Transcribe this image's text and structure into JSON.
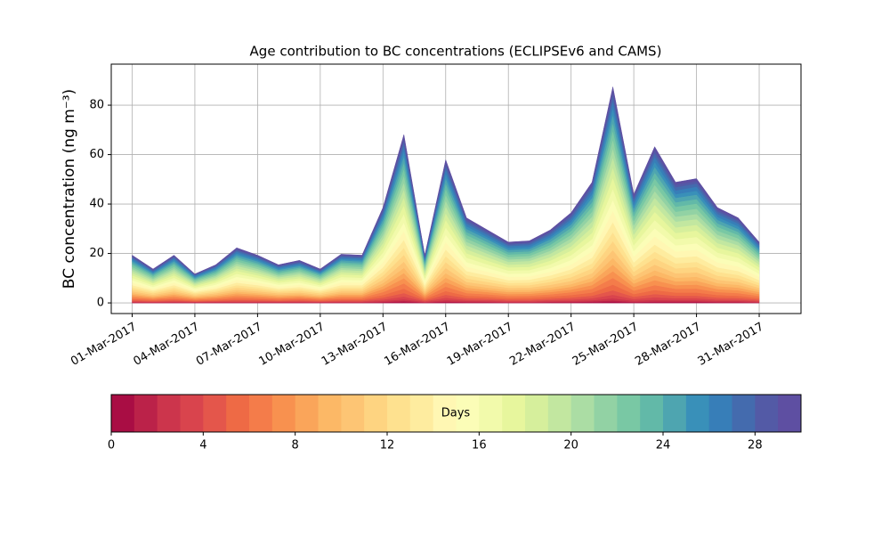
{
  "chart_data": {
    "type": "stacked-area",
    "title": "Age contribution to BC concentrations (ECLIPSEv6 and CAMS)",
    "ylabel": "BC concentration (ng m⁻³)",
    "x": [
      "2017-03-01",
      "2017-03-02",
      "2017-03-03",
      "2017-03-04",
      "2017-03-05",
      "2017-03-06",
      "2017-03-07",
      "2017-03-08",
      "2017-03-09",
      "2017-03-10",
      "2017-03-11",
      "2017-03-12",
      "2017-03-13",
      "2017-03-14",
      "2017-03-15",
      "2017-03-16",
      "2017-03-17",
      "2017-03-18",
      "2017-03-19",
      "2017-03-20",
      "2017-03-21",
      "2017-03-22",
      "2017-03-23",
      "2017-03-24",
      "2017-03-25",
      "2017-03-26",
      "2017-03-27",
      "2017-03-28",
      "2017-03-29",
      "2017-03-30",
      "2017-03-31"
    ],
    "xlim": [
      "2017-02-28",
      "2017-04-02"
    ],
    "xticks": [
      {
        "value": "2017-03-01",
        "label": "01-Mar-2017"
      },
      {
        "value": "2017-03-04",
        "label": "04-Mar-2017"
      },
      {
        "value": "2017-03-07",
        "label": "07-Mar-2017"
      },
      {
        "value": "2017-03-10",
        "label": "10-Mar-2017"
      },
      {
        "value": "2017-03-13",
        "label": "13-Mar-2017"
      },
      {
        "value": "2017-03-16",
        "label": "16-Mar-2017"
      },
      {
        "value": "2017-03-19",
        "label": "19-Mar-2017"
      },
      {
        "value": "2017-03-22",
        "label": "22-Mar-2017"
      },
      {
        "value": "2017-03-25",
        "label": "25-Mar-2017"
      },
      {
        "value": "2017-03-28",
        "label": "28-Mar-2017"
      },
      {
        "value": "2017-03-31",
        "label": "31-Mar-2017"
      }
    ],
    "ylim": [
      -4.3,
      96.6
    ],
    "yticks": [
      0,
      20,
      40,
      60,
      80
    ],
    "grid": true,
    "colorbar": {
      "label": "Days",
      "lim": [
        0,
        30
      ],
      "ticks": [
        0,
        4,
        8,
        12,
        16,
        20,
        24,
        28
      ]
    },
    "series": [
      {
        "color": "#a90d44",
        "values": [
          0.1,
          0.1,
          0.1,
          0.1,
          0.1,
          0.1,
          0.1,
          0.1,
          0.1,
          0.1,
          0.1,
          0.1,
          0.2,
          0.4,
          0.1,
          0.3,
          0.2,
          0.2,
          0.1,
          0.1,
          0.2,
          0.2,
          0.3,
          0.5,
          0.2,
          0.3,
          0.3,
          0.3,
          0.2,
          0.2,
          0.1
        ]
      },
      {
        "color": "#bb2249",
        "values": [
          0.1,
          0.1,
          0.1,
          0.1,
          0.1,
          0.1,
          0.1,
          0.1,
          0.1,
          0.1,
          0.1,
          0.1,
          0.2,
          0.4,
          0.1,
          0.3,
          0.2,
          0.2,
          0.1,
          0.1,
          0.2,
          0.2,
          0.3,
          0.5,
          0.2,
          0.3,
          0.3,
          0.3,
          0.2,
          0.2,
          0.1
        ]
      },
      {
        "color": "#cc354c",
        "values": [
          0.2,
          0.1,
          0.2,
          0.1,
          0.2,
          0.2,
          0.2,
          0.2,
          0.2,
          0.1,
          0.2,
          0.2,
          0.4,
          0.7,
          0.2,
          0.6,
          0.4,
          0.3,
          0.3,
          0.3,
          0.3,
          0.4,
          0.5,
          0.9,
          0.5,
          0.7,
          0.5,
          0.5,
          0.4,
          0.4,
          0.3
        ]
      },
      {
        "color": "#d9444d",
        "values": [
          0.3,
          0.2,
          0.3,
          0.2,
          0.2,
          0.3,
          0.3,
          0.2,
          0.3,
          0.2,
          0.3,
          0.3,
          0.6,
          1.1,
          0.3,
          0.9,
          0.5,
          0.5,
          0.4,
          0.4,
          0.5,
          0.6,
          0.8,
          1.4,
          0.7,
          1,
          0.8,
          0.8,
          0.6,
          0.5,
          0.4
        ]
      },
      {
        "color": "#e4564b",
        "values": [
          0.4,
          0.3,
          0.4,
          0.2,
          0.3,
          0.5,
          0.4,
          0.3,
          0.4,
          0.3,
          0.4,
          0.4,
          0.8,
          1.4,
          0.4,
          1.2,
          0.7,
          0.6,
          0.5,
          0.5,
          0.6,
          0.8,
          1,
          1.8,
          0.9,
          1.3,
          1,
          1,
          0.8,
          0.7,
          0.5
        ]
      },
      {
        "color": "#ee6a45",
        "values": [
          0.5,
          0.4,
          0.5,
          0.3,
          0.4,
          0.6,
          0.5,
          0.4,
          0.5,
          0.4,
          0.5,
          0.5,
          1,
          1.8,
          0.5,
          1.5,
          0.9,
          0.8,
          0.6,
          0.7,
          0.8,
          1,
          1.3,
          2.3,
          1.1,
          1.6,
          1.3,
          1.3,
          1,
          0.9,
          0.6
        ]
      },
      {
        "color": "#f47c4a",
        "values": [
          0.6,
          0.4,
          0.6,
          0.4,
          0.5,
          0.7,
          0.6,
          0.5,
          0.5,
          0.4,
          0.6,
          0.6,
          1.2,
          2.1,
          0.6,
          1.8,
          1.1,
          0.9,
          0.8,
          0.8,
          0.9,
          1.1,
          1.5,
          2.7,
          1.4,
          2,
          1.5,
          1.6,
          1.2,
          1.1,
          0.8
        ]
      },
      {
        "color": "#f8914f",
        "values": [
          0.6,
          0.4,
          0.6,
          0.4,
          0.5,
          0.7,
          0.6,
          0.5,
          0.5,
          0.4,
          0.6,
          0.6,
          1.2,
          2.1,
          0.6,
          1.8,
          1.1,
          0.9,
          0.8,
          0.8,
          0.9,
          1.1,
          1.5,
          2.7,
          1.4,
          2,
          1.5,
          1.6,
          1.2,
          1.1,
          0.8
        ]
      },
      {
        "color": "#faa55a",
        "values": [
          0.6,
          0.4,
          0.6,
          0.4,
          0.5,
          0.7,
          0.6,
          0.5,
          0.5,
          0.4,
          0.6,
          0.6,
          1.2,
          2.1,
          0.6,
          1.8,
          1.1,
          0.9,
          0.8,
          0.8,
          0.9,
          1.1,
          1.5,
          2.7,
          1.4,
          2,
          1.5,
          1.6,
          1.2,
          1.1,
          0.8
        ]
      },
      {
        "color": "#fcb866",
        "values": [
          0.6,
          0.4,
          0.6,
          0.4,
          0.5,
          0.7,
          0.6,
          0.5,
          0.5,
          0.4,
          0.6,
          0.6,
          1.2,
          2.1,
          0.6,
          1.8,
          1.1,
          0.9,
          0.8,
          0.8,
          0.9,
          1.1,
          1.5,
          2.7,
          1.4,
          2,
          1.5,
          1.6,
          1.2,
          1.1,
          0.8
        ]
      },
      {
        "color": "#fdc574",
        "values": [
          0.7,
          0.5,
          0.7,
          0.4,
          0.6,
          0.8,
          0.7,
          0.6,
          0.6,
          0.5,
          0.7,
          0.7,
          1.4,
          2.5,
          0.7,
          2.1,
          1.2,
          1.1,
          0.9,
          0.9,
          1.1,
          1.3,
          1.8,
          3.2,
          1.6,
          2.3,
          1.8,
          1.8,
          1.4,
          1.2,
          0.9
        ]
      },
      {
        "color": "#fed481",
        "values": [
          0.8,
          0.6,
          0.8,
          0.5,
          0.6,
          0.9,
          0.8,
          0.6,
          0.7,
          0.6,
          0.8,
          0.8,
          1.6,
          2.8,
          0.8,
          2.4,
          1.4,
          1.2,
          1,
          1,
          1.2,
          1.5,
          2,
          3.6,
          1.8,
          2.6,
          2,
          2.1,
          1.6,
          1.4,
          1
        ]
      },
      {
        "color": "#fee18f",
        "values": [
          0.8,
          0.6,
          0.8,
          0.5,
          0.6,
          0.9,
          0.8,
          0.6,
          0.7,
          0.6,
          0.8,
          0.8,
          1.6,
          2.8,
          0.8,
          2.4,
          1.4,
          1.2,
          1,
          1,
          1.2,
          1.5,
          2,
          3.6,
          1.8,
          2.6,
          2,
          2.1,
          1.6,
          1.4,
          1
        ]
      },
      {
        "color": "#feec9f",
        "values": [
          0.9,
          0.6,
          0.9,
          0.5,
          0.7,
          1,
          0.9,
          0.7,
          0.8,
          0.6,
          0.9,
          0.9,
          1.8,
          3.2,
          0.9,
          2.7,
          1.6,
          1.4,
          1.1,
          1.2,
          1.4,
          1.7,
          2.3,
          4.1,
          2,
          2.9,
          2.3,
          2.3,
          1.8,
          1.6,
          1.1
        ]
      },
      {
        "color": "#fff7b3",
        "values": [
          1,
          0.7,
          1,
          0.6,
          0.8,
          1.2,
          1,
          0.8,
          0.9,
          0.7,
          1.1,
          1,
          2,
          3.5,
          1,
          3,
          1.8,
          1.5,
          1.3,
          1.3,
          1.5,
          1.9,
          2.5,
          4.5,
          2.3,
          3.3,
          2.5,
          2.6,
          2,
          1.8,
          1.3
        ]
      },
      {
        "color": "#fbfdb7",
        "values": [
          1,
          0.7,
          1,
          0.6,
          0.8,
          1.2,
          1,
          0.8,
          0.9,
          0.7,
          1.1,
          1,
          2,
          3.5,
          1,
          3,
          1.8,
          1.5,
          1.3,
          1.3,
          1.5,
          1.9,
          2.5,
          4.5,
          2.3,
          3.3,
          2.5,
          2.6,
          2,
          1.8,
          1.3
        ]
      },
      {
        "color": "#f2faab",
        "values": [
          1,
          0.7,
          1,
          0.6,
          0.8,
          1.2,
          1,
          0.8,
          0.9,
          0.7,
          1.1,
          1,
          2,
          3.5,
          1,
          3,
          1.8,
          1.5,
          1.3,
          1.3,
          1.5,
          1.9,
          2.5,
          4.5,
          2.3,
          3.3,
          2.5,
          2.6,
          2,
          1.8,
          1.3
        ]
      },
      {
        "color": "#e7f69d",
        "values": [
          1,
          0.7,
          1,
          0.6,
          0.8,
          1.2,
          1,
          0.8,
          0.9,
          0.7,
          1.1,
          1,
          2,
          3.5,
          1,
          3,
          1.8,
          1.5,
          1.3,
          1.3,
          1.5,
          1.9,
          2.5,
          4.5,
          2.3,
          3.3,
          2.5,
          2.6,
          2,
          1.8,
          1.3
        ]
      },
      {
        "color": "#d6ef9c",
        "values": [
          0.9,
          0.6,
          0.9,
          0.5,
          0.7,
          1,
          0.9,
          0.7,
          0.8,
          0.6,
          0.9,
          0.9,
          1.8,
          3.2,
          0.9,
          2.7,
          1.6,
          1.4,
          1.1,
          1.2,
          1.4,
          1.7,
          2.3,
          4.1,
          2,
          2.9,
          2.3,
          2.3,
          1.8,
          1.6,
          1.1
        ]
      },
      {
        "color": "#c2e7a0",
        "values": [
          0.9,
          0.6,
          0.9,
          0.5,
          0.7,
          1,
          0.9,
          0.7,
          0.8,
          0.6,
          0.9,
          0.9,
          1.8,
          3.2,
          0.9,
          2.7,
          1.6,
          1.4,
          1.1,
          1.2,
          1.4,
          1.7,
          2.3,
          4.1,
          2,
          2.9,
          2.3,
          2.3,
          1.8,
          1.6,
          1.1
        ]
      },
      {
        "color": "#abdda4",
        "values": [
          0.8,
          0.6,
          0.8,
          0.5,
          0.6,
          0.9,
          0.8,
          0.6,
          0.7,
          0.6,
          0.8,
          0.8,
          1.6,
          2.8,
          0.8,
          2.4,
          1.4,
          1.2,
          1,
          1,
          1.2,
          1.5,
          2,
          3.6,
          1.8,
          2.6,
          2,
          2.1,
          1.6,
          1.4,
          1
        ]
      },
      {
        "color": "#92d2a4",
        "values": [
          0.8,
          0.6,
          0.8,
          0.5,
          0.6,
          0.9,
          0.8,
          0.6,
          0.7,
          0.6,
          0.8,
          0.8,
          1.6,
          2.8,
          0.8,
          2.4,
          1.4,
          1.2,
          1,
          1,
          1.2,
          1.5,
          2,
          3.6,
          1.8,
          2.6,
          2,
          2.1,
          1.6,
          1.4,
          1
        ]
      },
      {
        "color": "#79c8a4",
        "values": [
          0.8,
          0.6,
          0.8,
          0.5,
          0.6,
          0.9,
          0.8,
          0.6,
          0.7,
          0.6,
          0.8,
          0.8,
          1.6,
          2.8,
          0.8,
          2.4,
          1.4,
          1.2,
          1,
          1,
          1.2,
          1.5,
          2,
          3.6,
          1.8,
          2.6,
          2,
          2.1,
          1.6,
          1.4,
          1
        ]
      },
      {
        "color": "#62b9a8",
        "values": [
          0.7,
          0.5,
          0.7,
          0.4,
          0.6,
          0.8,
          0.7,
          0.6,
          0.6,
          0.5,
          0.7,
          0.7,
          1.4,
          2.5,
          0.7,
          2.1,
          1.2,
          1.1,
          0.9,
          0.9,
          1.1,
          1.3,
          1.8,
          3.2,
          1.6,
          2.3,
          1.8,
          1.8,
          1.4,
          1.2,
          0.9
        ]
      },
      {
        "color": "#4ea5b0",
        "values": [
          0.7,
          0.5,
          0.7,
          0.4,
          0.6,
          0.8,
          0.7,
          0.6,
          0.6,
          0.5,
          0.7,
          0.7,
          1.4,
          2.5,
          0.7,
          2.1,
          1.2,
          1.1,
          0.9,
          0.9,
          1.1,
          1.3,
          1.8,
          3.2,
          1.6,
          2.3,
          1.8,
          1.8,
          1.4,
          1.2,
          0.9
        ]
      },
      {
        "color": "#3990b9",
        "values": [
          0.6,
          0.4,
          0.6,
          0.4,
          0.5,
          0.7,
          0.6,
          0.5,
          0.5,
          0.4,
          0.6,
          0.6,
          1.2,
          2.1,
          0.6,
          1.8,
          1.1,
          0.9,
          0.8,
          0.8,
          0.9,
          1.1,
          1.5,
          2.7,
          1.4,
          2,
          1.5,
          1.6,
          1.2,
          1.1,
          0.8
        ]
      },
      {
        "color": "#377eb8",
        "values": [
          0.6,
          0.4,
          0.6,
          0.4,
          0.5,
          0.7,
          0.6,
          0.5,
          0.5,
          0.4,
          0.6,
          0.6,
          1.2,
          2.1,
          0.6,
          1.8,
          1.1,
          0.9,
          0.8,
          0.8,
          0.9,
          1.1,
          1.5,
          2.7,
          1.4,
          2,
          1.5,
          1.6,
          1.2,
          1.1,
          0.8
        ]
      },
      {
        "color": "#446bae",
        "values": [
          0.5,
          0.4,
          0.5,
          0.3,
          0.4,
          0.6,
          0.5,
          0.4,
          0.5,
          0.4,
          0.5,
          0.5,
          1,
          1.8,
          0.5,
          1.5,
          0.9,
          0.8,
          0.6,
          0.7,
          0.8,
          1,
          1.3,
          2.3,
          1.1,
          1.6,
          1.3,
          1.3,
          1,
          0.9,
          0.6
        ]
      },
      {
        "color": "#535aa6",
        "values": [
          0.4,
          0.3,
          0.4,
          0.2,
          0.3,
          0.5,
          0.4,
          0.3,
          0.4,
          0.3,
          0.4,
          0.4,
          0.8,
          1.4,
          0.4,
          1.2,
          0.7,
          0.6,
          0.5,
          0.5,
          0.6,
          0.8,
          1,
          1.8,
          0.9,
          1.3,
          1,
          1,
          0.8,
          0.7,
          0.5
        ]
      },
      {
        "color": "#5e4fa2",
        "values": [
          0.4,
          0.3,
          0.4,
          0.2,
          0.3,
          0.5,
          0.4,
          0.3,
          0.4,
          0.3,
          0.4,
          0.4,
          0.8,
          1.4,
          0.4,
          1.2,
          0.7,
          0.6,
          0.5,
          0.5,
          0.6,
          0.8,
          1,
          1.8,
          0.9,
          1.3,
          1,
          1,
          0.8,
          0.7,
          0.5
        ]
      }
    ]
  }
}
